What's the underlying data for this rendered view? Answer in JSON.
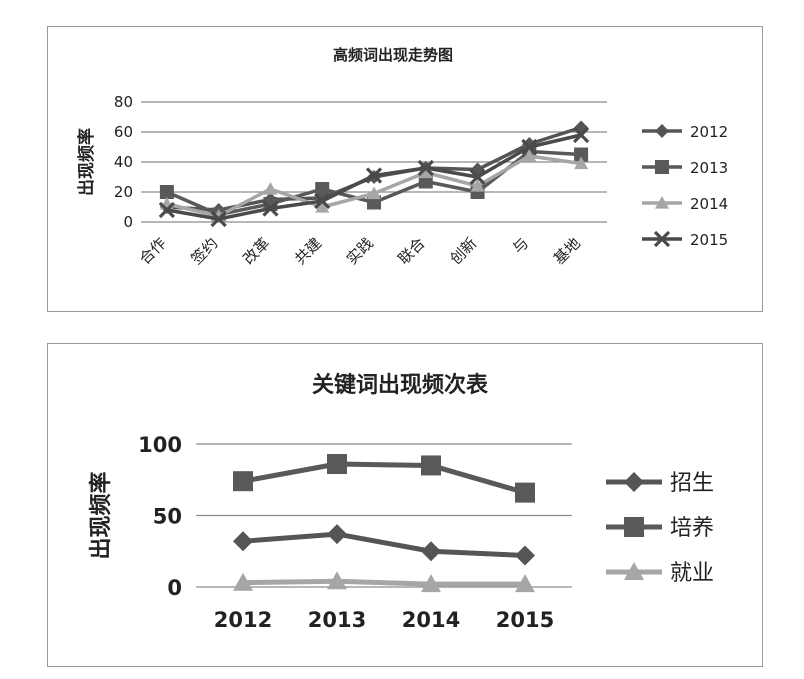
{
  "colors": {
    "dark": "#555555",
    "mid": "#595959",
    "light": "#a6a6a6",
    "cross": "#4a4a4a",
    "grid": "#8c8c8c"
  },
  "chart_data": [
    {
      "type": "line",
      "title": "高频词出现走势图",
      "ylabel": "出现频率",
      "xlabel": "",
      "categories": [
        "合作",
        "签约",
        "改革",
        "共建",
        "实践",
        "联合",
        "创新",
        "与",
        "基地"
      ],
      "ylim": [
        0,
        80
      ],
      "yticks": [
        0,
        20,
        40,
        60,
        80
      ],
      "grid": true,
      "legend": "right",
      "series": [
        {
          "name": "2012",
          "marker": "diamond",
          "color": "#555555",
          "values": [
            10,
            8,
            15,
            16,
            30,
            36,
            35,
            52,
            63
          ]
        },
        {
          "name": "2013",
          "marker": "square",
          "color": "#595959",
          "values": [
            20,
            5,
            12,
            22,
            13,
            27,
            20,
            47,
            45
          ]
        },
        {
          "name": "2014",
          "marker": "triangle",
          "color": "#a6a6a6",
          "values": [
            12,
            4,
            22,
            10,
            19,
            33,
            24,
            44,
            39
          ]
        },
        {
          "name": "2015",
          "marker": "x",
          "color": "#4a4a4a",
          "values": [
            8,
            2,
            9,
            14,
            31,
            36,
            30,
            50,
            58
          ]
        }
      ]
    },
    {
      "type": "line",
      "title": "关键词出现频次表",
      "ylabel": "出现频率",
      "xlabel": "",
      "categories": [
        "2012",
        "2013",
        "2014",
        "2015"
      ],
      "ylim": [
        0,
        100
      ],
      "yticks": [
        0,
        50,
        100
      ],
      "grid": true,
      "legend": "right",
      "series": [
        {
          "name": "招生",
          "marker": "diamond",
          "color": "#555555",
          "values": [
            32,
            37,
            25,
            22
          ]
        },
        {
          "name": "培养",
          "marker": "square",
          "color": "#595959",
          "values": [
            74,
            86,
            85,
            66
          ]
        },
        {
          "name": "就业",
          "marker": "triangle",
          "color": "#a6a6a6",
          "values": [
            3,
            4,
            2,
            2
          ]
        }
      ]
    }
  ]
}
